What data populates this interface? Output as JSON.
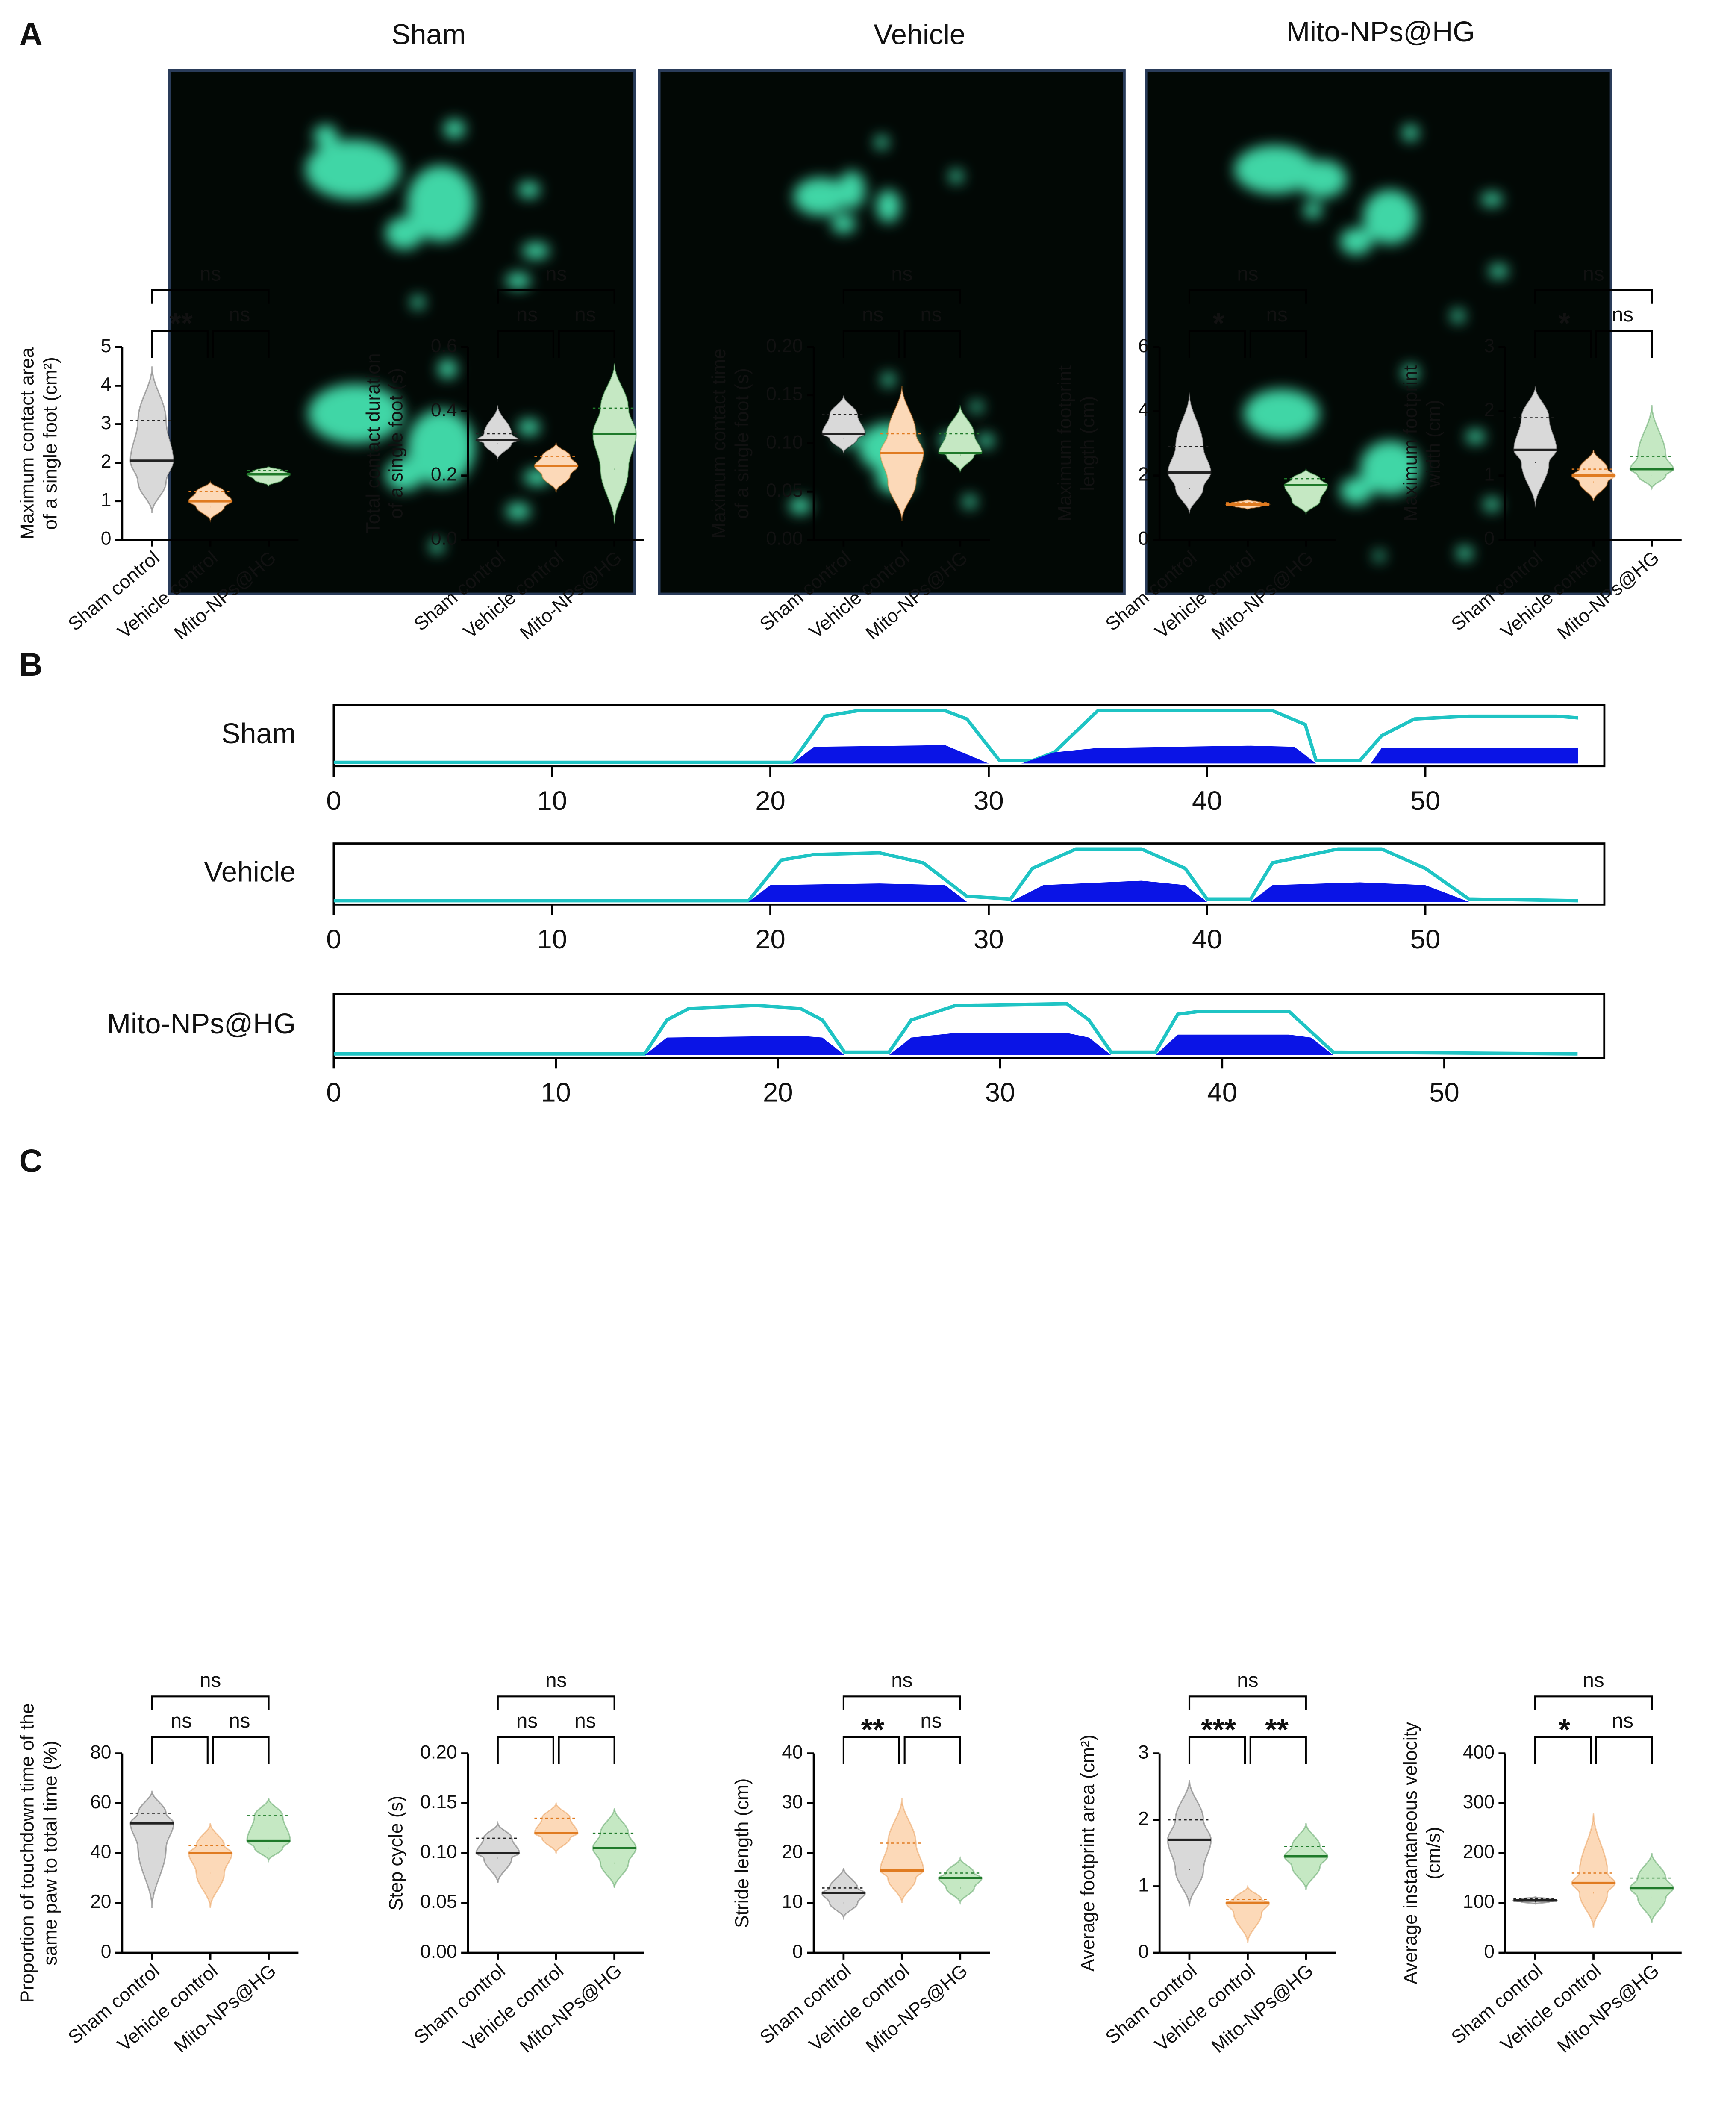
{
  "panel_labels": [
    "A",
    "B",
    "C"
  ],
  "panel_a": {
    "titles": [
      "Sham",
      "Vehicle",
      "Mito-NPs@HG"
    ]
  },
  "chart_data": [
    {
      "type": "area",
      "title": "Sham",
      "xlim": [
        0,
        58.2
      ],
      "xticks": [
        0,
        10,
        20,
        30,
        40,
        50
      ],
      "ylim": [
        0,
        1
      ],
      "series": [
        {
          "color": "#1fc4c4",
          "style": "line",
          "x": [
            0,
            21,
            22.5,
            24,
            28,
            29,
            30.5,
            32,
            33,
            35,
            43,
            44.5,
            45,
            47,
            48,
            49.5,
            52,
            56,
            57
          ],
          "values": [
            0.02,
            0.02,
            0.85,
            0.95,
            0.95,
            0.8,
            0.05,
            0.05,
            0.2,
            0.95,
            0.95,
            0.7,
            0.05,
            0.05,
            0.5,
            0.8,
            0.85,
            0.85,
            0.82
          ]
        },
        {
          "color": "#0a14e6",
          "style": "area",
          "x": [
            21,
            22,
            28,
            30,
            31.5,
            33,
            35,
            42,
            44,
            45,
            47.5,
            48,
            57
          ],
          "values": [
            0,
            0.3,
            0.33,
            0,
            0,
            0.2,
            0.28,
            0.32,
            0.3,
            0,
            0,
            0.28,
            0.28
          ]
        }
      ]
    },
    {
      "type": "area",
      "title": "Vehicle",
      "xlim": [
        0,
        58.2
      ],
      "xticks": [
        0,
        10,
        20,
        30,
        40,
        50
      ],
      "ylim": [
        0,
        1
      ],
      "series": [
        {
          "color": "#1fc4c4",
          "style": "line",
          "x": [
            0,
            19,
            20.5,
            22,
            25,
            27,
            29,
            31,
            32,
            34,
            37,
            39,
            40,
            42,
            43,
            46,
            48,
            50,
            52,
            57
          ],
          "values": [
            0.02,
            0.02,
            0.75,
            0.85,
            0.88,
            0.7,
            0.1,
            0.05,
            0.6,
            0.95,
            0.95,
            0.6,
            0.05,
            0.05,
            0.7,
            0.95,
            0.95,
            0.6,
            0.05,
            0.02
          ]
        },
        {
          "color": "#0a14e6",
          "style": "area",
          "x": [
            19,
            20,
            25,
            28,
            29,
            31,
            32.5,
            37,
            39,
            40,
            42,
            43,
            47,
            50,
            52,
            57
          ],
          "values": [
            0,
            0.3,
            0.33,
            0.3,
            0,
            0,
            0.3,
            0.38,
            0.3,
            0,
            0,
            0.3,
            0.35,
            0.3,
            0,
            0
          ]
        }
      ]
    },
    {
      "type": "area",
      "title": "Mito-NPs@HG",
      "xlim": [
        0,
        57.2
      ],
      "xticks": [
        0,
        10,
        20,
        30,
        40,
        50
      ],
      "ylim": [
        0,
        1
      ],
      "series": [
        {
          "color": "#1fc4c4",
          "style": "line",
          "x": [
            0,
            14,
            15,
            16,
            19,
            21,
            22,
            23,
            25,
            26,
            28,
            33,
            34,
            35,
            37,
            38,
            39,
            43,
            45,
            56
          ],
          "values": [
            0.02,
            0.02,
            0.6,
            0.8,
            0.85,
            0.8,
            0.6,
            0.05,
            0.05,
            0.6,
            0.85,
            0.88,
            0.6,
            0.05,
            0.05,
            0.7,
            0.75,
            0.75,
            0.05,
            0.02
          ]
        },
        {
          "color": "#0a14e6",
          "style": "area",
          "x": [
            14,
            15,
            21,
            22,
            23,
            25,
            26,
            28,
            33,
            34,
            35,
            37,
            38,
            43,
            44,
            45,
            56
          ],
          "values": [
            0,
            0.3,
            0.33,
            0.3,
            0,
            0,
            0.3,
            0.38,
            0.38,
            0.3,
            0,
            0,
            0.35,
            0.35,
            0.3,
            0,
            0
          ]
        }
      ]
    },
    {
      "type": "violin",
      "ylabel": [
        "Maximum contact area",
        "of a single foot (cm²)"
      ],
      "categories": [
        "Sham control",
        "Vehicle control",
        "Mito-NPs@HG"
      ],
      "ylim": [
        0,
        5
      ],
      "yticks": [
        0,
        1,
        2,
        3,
        4,
        5
      ],
      "violins": [
        {
          "color": "#d9d9d9",
          "line": "#222222",
          "min": 0.7,
          "q1": 1.5,
          "median": 2.05,
          "q3": 3.1,
          "max": 4.5
        },
        {
          "color": "#fcd9b8",
          "line": "#e07b20",
          "min": 0.5,
          "q1": 0.85,
          "median": 1.0,
          "q3": 1.25,
          "max": 1.5
        },
        {
          "color": "#c5e8c3",
          "line": "#1f7a2a",
          "min": 1.4,
          "q1": 1.55,
          "median": 1.7,
          "q3": 1.8,
          "max": 1.9
        }
      ],
      "significance": [
        {
          "label": "ns",
          "pair": [
            0,
            2
          ]
        },
        {
          "label": "**",
          "pair": [
            0,
            1
          ]
        },
        {
          "label": "ns",
          "pair": [
            1,
            2
          ]
        }
      ]
    },
    {
      "type": "violin",
      "ylabel": [
        "Total contact duration",
        "of a single foot (s)"
      ],
      "categories": [
        "Sham control",
        "Vehicle control",
        "Mito-NPs@HG"
      ],
      "ylim": [
        0,
        0.6
      ],
      "yticks": [
        {
          "value": 0,
          "label": "0.0"
        },
        0.2,
        0.4,
        0.6
      ],
      "violins": [
        {
          "color": "#d9d9d9",
          "line": "#222222",
          "min": 0.25,
          "q1": 0.3,
          "median": 0.31,
          "q3": 0.33,
          "max": 0.42
        },
        {
          "color": "#fcd9b8",
          "line": "#e07b20",
          "min": 0.15,
          "q1": 0.2,
          "median": 0.23,
          "q3": 0.26,
          "max": 0.3
        },
        {
          "color": "#c5e8c3",
          "line": "#1f7a2a",
          "min": 0.05,
          "q1": 0.22,
          "median": 0.33,
          "q3": 0.41,
          "max": 0.55
        }
      ],
      "significance": [
        {
          "label": "ns",
          "pair": [
            0,
            2
          ]
        },
        {
          "label": "ns",
          "pair": [
            0,
            1
          ]
        },
        {
          "label": "ns",
          "pair": [
            1,
            2
          ]
        }
      ]
    },
    {
      "type": "violin",
      "ylabel": [
        "Maximum contact time",
        "of a single foot (s)"
      ],
      "categories": [
        "Sham control",
        "Vehicle control",
        "Mito-NPs@HG"
      ],
      "ylim": [
        0,
        0.2
      ],
      "yticks": [
        {
          "value": 0,
          "label": "0.00"
        },
        0.05,
        {
          "value": 0.1,
          "label": "0.10"
        },
        0.15,
        {
          "value": 0.2,
          "label": "0.20"
        }
      ],
      "violins": [
        {
          "color": "#d9d9d9",
          "line": "#222222",
          "min": 0.09,
          "q1": 0.105,
          "median": 0.11,
          "q3": 0.13,
          "max": 0.15
        },
        {
          "color": "#fcd9b8",
          "line": "#e07b20",
          "min": 0.02,
          "q1": 0.06,
          "median": 0.09,
          "q3": 0.11,
          "max": 0.16
        },
        {
          "color": "#c5e8c3",
          "line": "#1f7a2a",
          "min": 0.07,
          "q1": 0.088,
          "median": 0.09,
          "q3": 0.11,
          "max": 0.14
        }
      ],
      "significance": [
        {
          "label": "ns",
          "pair": [
            0,
            2
          ]
        },
        {
          "label": "ns",
          "pair": [
            0,
            1
          ]
        },
        {
          "label": "ns",
          "pair": [
            1,
            2
          ]
        }
      ]
    },
    {
      "type": "violin",
      "ylabel": [
        "Maximum footprint",
        "length (cm)"
      ],
      "categories": [
        "Sham control",
        "Vehicle control",
        "Mito-NPs@HG"
      ],
      "ylim": [
        0,
        6
      ],
      "yticks": [
        0,
        2,
        4,
        6
      ],
      "violins": [
        {
          "color": "#d9d9d9",
          "line": "#222222",
          "min": 0.8,
          "q1": 1.6,
          "median": 2.1,
          "q3": 2.9,
          "max": 4.6
        },
        {
          "color": "#fcd9b8",
          "line": "#e07b20",
          "min": 0.95,
          "q1": 1.05,
          "median": 1.1,
          "q3": 1.15,
          "max": 1.25
        },
        {
          "color": "#c5e8c3",
          "line": "#1f7a2a",
          "min": 0.8,
          "q1": 1.2,
          "median": 1.7,
          "q3": 1.9,
          "max": 2.2
        }
      ],
      "significance": [
        {
          "label": "ns",
          "pair": [
            0,
            2
          ]
        },
        {
          "label": "*",
          "pair": [
            0,
            1
          ]
        },
        {
          "label": "ns",
          "pair": [
            1,
            2
          ]
        }
      ]
    },
    {
      "type": "violin",
      "ylabel": [
        "Maximum footprint",
        "width (cm)"
      ],
      "categories": [
        "Sham control",
        "Vehicle control",
        "Mito-NPs@HG"
      ],
      "ylim": [
        0,
        3
      ],
      "yticks": [
        0,
        1,
        2,
        3
      ],
      "violins": [
        {
          "color": "#d9d9d9",
          "line": "#222222",
          "min": 0.5,
          "q1": 1.2,
          "median": 1.4,
          "q3": 1.9,
          "max": 2.4
        },
        {
          "color": "#fcd9b8",
          "line": "#e07b20",
          "min": 0.6,
          "q1": 0.9,
          "median": 1.0,
          "q3": 1.1,
          "max": 1.4
        },
        {
          "color": "#c5e8c3",
          "line": "#1f7a2a",
          "min": 0.8,
          "q1": 1.0,
          "median": 1.1,
          "q3": 1.3,
          "max": 2.1
        }
      ],
      "significance": [
        {
          "label": "ns",
          "pair": [
            0,
            2
          ]
        },
        {
          "label": "*",
          "pair": [
            0,
            1
          ]
        },
        {
          "label": "ns",
          "pair": [
            1,
            2
          ]
        }
      ]
    },
    {
      "type": "violin",
      "ylabel": [
        "Proportion of touchdown time of the",
        "same paw to total time (%)"
      ],
      "categories": [
        "Sham control",
        "Vehicle control",
        "Mito-NPs@HG"
      ],
      "ylim": [
        0,
        80
      ],
      "yticks": [
        0,
        20,
        40,
        60,
        80
      ],
      "violins": [
        {
          "color": "#d9d9d9",
          "line": "#222222",
          "min": 18,
          "q1": 42,
          "median": 52,
          "q3": 56,
          "max": 65
        },
        {
          "color": "#fcd9b8",
          "line": "#e07b20",
          "min": 18,
          "q1": 32,
          "median": 40,
          "q3": 43,
          "max": 52
        },
        {
          "color": "#c5e8c3",
          "line": "#1f7a2a",
          "min": 37,
          "q1": 42,
          "median": 45,
          "q3": 55,
          "max": 62
        }
      ],
      "significance": [
        {
          "label": "ns",
          "pair": [
            0,
            2
          ]
        },
        {
          "label": "ns",
          "pair": [
            0,
            1
          ]
        },
        {
          "label": "ns",
          "pair": [
            1,
            2
          ]
        }
      ]
    },
    {
      "type": "violin",
      "ylabel": [
        "Step cycle (s)"
      ],
      "categories": [
        "Sham control",
        "Vehicle control",
        "Mito-NPs@HG"
      ],
      "ylim": [
        0,
        0.2
      ],
      "yticks": [
        {
          "value": 0,
          "label": "0.00"
        },
        0.05,
        {
          "value": 0.1,
          "label": "0.10"
        },
        0.15,
        {
          "value": 0.2,
          "label": "0.20"
        }
      ],
      "violins": [
        {
          "color": "#d9d9d9",
          "line": "#222222",
          "min": 0.07,
          "q1": 0.095,
          "median": 0.1,
          "q3": 0.115,
          "max": 0.13
        },
        {
          "color": "#fcd9b8",
          "line": "#e07b20",
          "min": 0.1,
          "q1": 0.115,
          "median": 0.12,
          "q3": 0.135,
          "max": 0.15
        },
        {
          "color": "#c5e8c3",
          "line": "#1f7a2a",
          "min": 0.065,
          "q1": 0.09,
          "median": 0.105,
          "q3": 0.12,
          "max": 0.145
        }
      ],
      "significance": [
        {
          "label": "ns",
          "pair": [
            0,
            2
          ]
        },
        {
          "label": "ns",
          "pair": [
            0,
            1
          ]
        },
        {
          "label": "ns",
          "pair": [
            1,
            2
          ]
        }
      ]
    },
    {
      "type": "violin",
      "ylabel": [
        "Stride length (cm)"
      ],
      "categories": [
        "Sham control",
        "Vehicle control",
        "Mito-NPs@HG"
      ],
      "ylim": [
        0,
        40
      ],
      "yticks": [
        0,
        10,
        20,
        30,
        40
      ],
      "violins": [
        {
          "color": "#d9d9d9",
          "line": "#222222",
          "min": 7,
          "q1": 10,
          "median": 12,
          "q3": 13,
          "max": 17
        },
        {
          "color": "#fcd9b8",
          "line": "#e07b20",
          "min": 10,
          "q1": 15,
          "median": 16.5,
          "q3": 22,
          "max": 31
        },
        {
          "color": "#c5e8c3",
          "line": "#1f7a2a",
          "min": 10,
          "q1": 13,
          "median": 15,
          "q3": 16,
          "max": 19
        }
      ],
      "significance": [
        {
          "label": "ns",
          "pair": [
            0,
            2
          ]
        },
        {
          "label": "**",
          "pair": [
            0,
            1
          ]
        },
        {
          "label": "ns",
          "pair": [
            1,
            2
          ]
        }
      ]
    },
    {
      "type": "violin",
      "ylabel": [
        "Average footprint area (cm²)"
      ],
      "categories": [
        "Sham control",
        "Vehicle control",
        "Mito-NPs@HG"
      ],
      "ylim": [
        0,
        3
      ],
      "yticks": [
        0,
        1,
        2,
        3
      ],
      "violins": [
        {
          "color": "#d9d9d9",
          "line": "#222222",
          "min": 0.7,
          "q1": 1.25,
          "median": 1.7,
          "q3": 2.0,
          "max": 2.6
        },
        {
          "color": "#fcd9b8",
          "line": "#e07b20",
          "min": 0.15,
          "q1": 0.6,
          "median": 0.75,
          "q3": 0.8,
          "max": 1.0
        },
        {
          "color": "#c5e8c3",
          "line": "#1f7a2a",
          "min": 0.95,
          "q1": 1.3,
          "median": 1.45,
          "q3": 1.6,
          "max": 1.95
        }
      ],
      "significance": [
        {
          "label": "ns",
          "pair": [
            0,
            2
          ]
        },
        {
          "label": "***",
          "pair": [
            0,
            1
          ]
        },
        {
          "label": "**",
          "pair": [
            1,
            2
          ]
        }
      ]
    },
    {
      "type": "violin",
      "ylabel": [
        "Average instantaneous velocity",
        "(cm/s)"
      ],
      "categories": [
        "Sham control",
        "Vehicle control",
        "Mito-NPs@HG"
      ],
      "ylim": [
        0,
        400
      ],
      "yticks": [
        0,
        100,
        200,
        300,
        400
      ],
      "violins": [
        {
          "color": "#d9d9d9",
          "line": "#222222",
          "min": 98,
          "q1": 102,
          "median": 105,
          "q3": 108,
          "max": 112
        },
        {
          "color": "#fcd9b8",
          "line": "#e07b20",
          "min": 50,
          "q1": 120,
          "median": 140,
          "q3": 160,
          "max": 280
        },
        {
          "color": "#c5e8c3",
          "line": "#1f7a2a",
          "min": 60,
          "q1": 110,
          "median": 130,
          "q3": 150,
          "max": 200
        }
      ],
      "significance": [
        {
          "label": "ns",
          "pair": [
            0,
            2
          ]
        },
        {
          "label": "*",
          "pair": [
            0,
            1
          ]
        },
        {
          "label": "ns",
          "pair": [
            1,
            2
          ]
        }
      ]
    }
  ]
}
